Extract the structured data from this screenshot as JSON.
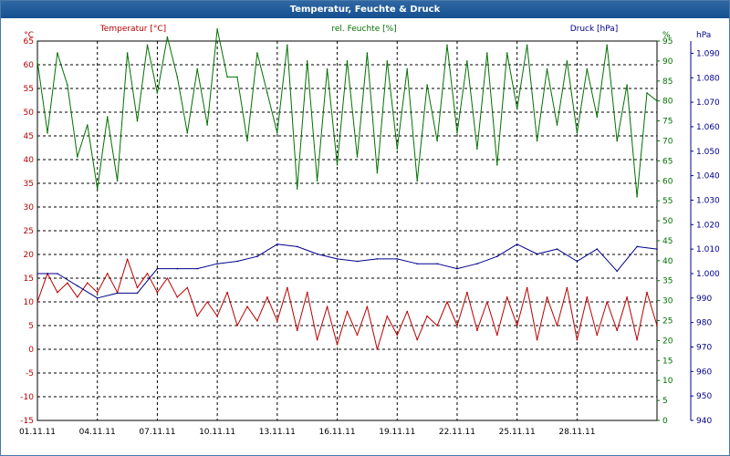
{
  "window": {
    "title": "Temperatur, Feuchte & Druck"
  },
  "colors": {
    "temperature": "#b80000",
    "humidity": "#007000",
    "pressure": "#00008c",
    "grid": "#000000"
  },
  "chart_data": {
    "type": "line",
    "title": "Temperatur, Feuchte & Druck",
    "x_axis": {
      "type": "date",
      "range": [
        "2011-11-01",
        "2011-12-02"
      ],
      "tick_labels": [
        "01.11.11",
        "04.11.11",
        "07.11.11",
        "10.11.11",
        "13.11.11",
        "16.11.11",
        "19.11.11",
        "22.11.11",
        "25.11.11",
        "28.11.11"
      ]
    },
    "y_axes": [
      {
        "id": "temp",
        "title": "Temperatur [°C]",
        "unit": "°C",
        "range": [
          -15,
          65
        ],
        "ticks": [
          -15,
          -10,
          -5,
          0,
          5,
          10,
          15,
          20,
          25,
          30,
          35,
          40,
          45,
          50,
          55,
          60,
          65
        ],
        "position": "left"
      },
      {
        "id": "hum",
        "title": "rel. Feuchte [%]",
        "unit": "%",
        "range": [
          0,
          95
        ],
        "ticks": [
          0,
          5,
          10,
          15,
          20,
          25,
          30,
          35,
          40,
          45,
          50,
          55,
          60,
          65,
          70,
          75,
          80,
          85,
          90,
          95
        ],
        "position": "right"
      },
      {
        "id": "press",
        "title": "Druck [hPa]",
        "unit": "hPa",
        "tick_labels": [
          "940",
          "950",
          "960",
          "970",
          "980",
          "990",
          "1.000",
          "1.010",
          "1.020",
          "1.030",
          "1.040",
          "1.050",
          "1.060",
          "1.070",
          "1.080",
          "1.090"
        ],
        "range": [
          940,
          1095
        ],
        "position": "far-right"
      }
    ],
    "grid": true,
    "series": [
      {
        "name": "Temperatur [°C]",
        "axis": "temp",
        "x": [
          "2011-11-01",
          "2011-11-01 12:00",
          "2011-11-02",
          "2011-11-02 12:00",
          "2011-11-03",
          "2011-11-03 12:00",
          "2011-11-04",
          "2011-11-04 12:00",
          "2011-11-05",
          "2011-11-05 12:00",
          "2011-11-06",
          "2011-11-06 12:00",
          "2011-11-07",
          "2011-11-07 12:00",
          "2011-11-08",
          "2011-11-08 12:00",
          "2011-11-09",
          "2011-11-09 12:00",
          "2011-11-10",
          "2011-11-10 12:00",
          "2011-11-11",
          "2011-11-11 12:00",
          "2011-11-12",
          "2011-11-12 12:00",
          "2011-11-13",
          "2011-11-13 12:00",
          "2011-11-14",
          "2011-11-14 12:00",
          "2011-11-15",
          "2011-11-15 12:00",
          "2011-11-16",
          "2011-11-16 12:00",
          "2011-11-17",
          "2011-11-17 12:00",
          "2011-11-18",
          "2011-11-18 12:00",
          "2011-11-19",
          "2011-11-19 12:00",
          "2011-11-20",
          "2011-11-20 12:00",
          "2011-11-21",
          "2011-11-21 12:00",
          "2011-11-22",
          "2011-11-22 12:00",
          "2011-11-23",
          "2011-11-23 12:00",
          "2011-11-24",
          "2011-11-24 12:00",
          "2011-11-25",
          "2011-11-25 12:00",
          "2011-11-26",
          "2011-11-26 12:00",
          "2011-11-27",
          "2011-11-27 12:00",
          "2011-11-28",
          "2011-11-28 12:00",
          "2011-11-29",
          "2011-11-29 12:00",
          "2011-11-30",
          "2011-11-30 12:00",
          "2011-12-01",
          "2011-12-01 12:00",
          "2011-12-02"
        ],
        "y": [
          10,
          16,
          12,
          14,
          11,
          14,
          12,
          16,
          12,
          19,
          13,
          16,
          12,
          15,
          11,
          13,
          7,
          10,
          7,
          12,
          5,
          9,
          6,
          11,
          6,
          13,
          4,
          12,
          2,
          9,
          1,
          8,
          3,
          9,
          0,
          7,
          3,
          8,
          2,
          7,
          5,
          10,
          5,
          12,
          4,
          10,
          3,
          11,
          5,
          13,
          2,
          11,
          5,
          13,
          2,
          11,
          3,
          10,
          4,
          11,
          2,
          12,
          5
        ]
      },
      {
        "name": "rel. Feuchte [%]",
        "axis": "hum",
        "x": [
          "2011-11-01",
          "2011-11-01 12:00",
          "2011-11-02",
          "2011-11-02 12:00",
          "2011-11-03",
          "2011-11-03 12:00",
          "2011-11-04",
          "2011-11-04 12:00",
          "2011-11-05",
          "2011-11-05 12:00",
          "2011-11-06",
          "2011-11-06 12:00",
          "2011-11-07",
          "2011-11-07 12:00",
          "2011-11-08",
          "2011-11-08 12:00",
          "2011-11-09",
          "2011-11-09 12:00",
          "2011-11-10",
          "2011-11-10 12:00",
          "2011-11-11",
          "2011-11-11 12:00",
          "2011-11-12",
          "2011-11-12 12:00",
          "2011-11-13",
          "2011-11-13 12:00",
          "2011-11-14",
          "2011-11-14 12:00",
          "2011-11-15",
          "2011-11-15 12:00",
          "2011-11-16",
          "2011-11-16 12:00",
          "2011-11-17",
          "2011-11-17 12:00",
          "2011-11-18",
          "2011-11-18 12:00",
          "2011-11-19",
          "2011-11-19 12:00",
          "2011-11-20",
          "2011-11-20 12:00",
          "2011-11-21",
          "2011-11-21 12:00",
          "2011-11-22",
          "2011-11-22 12:00",
          "2011-11-23",
          "2011-11-23 12:00",
          "2011-11-24",
          "2011-11-24 12:00",
          "2011-11-25",
          "2011-11-25 12:00",
          "2011-11-26",
          "2011-11-26 12:00",
          "2011-11-27",
          "2011-11-27 12:00",
          "2011-11-28",
          "2011-11-28 12:00",
          "2011-11-29",
          "2011-11-29 12:00",
          "2011-11-30",
          "2011-11-30 12:00",
          "2011-12-01",
          "2011-12-01 12:00",
          "2011-12-02"
        ],
        "y": [
          90,
          72,
          92,
          84,
          66,
          74,
          58,
          76,
          60,
          92,
          75,
          94,
          82,
          96,
          86,
          72,
          88,
          74,
          98,
          86,
          86,
          70,
          92,
          82,
          72,
          94,
          58,
          90,
          60,
          88,
          64,
          90,
          66,
          92,
          62,
          90,
          68,
          88,
          60,
          84,
          70,
          94,
          72,
          90,
          68,
          92,
          64,
          92,
          78,
          94,
          70,
          88,
          74,
          90,
          72,
          88,
          76,
          94,
          70,
          84,
          56,
          82,
          80
        ]
      },
      {
        "name": "Druck [hPa]",
        "axis": "press",
        "x": [
          "2011-11-01",
          "2011-11-02",
          "2011-11-03",
          "2011-11-04",
          "2011-11-05",
          "2011-11-06",
          "2011-11-07",
          "2011-11-08",
          "2011-11-09",
          "2011-11-10",
          "2011-11-11",
          "2011-11-12",
          "2011-11-13",
          "2011-11-14",
          "2011-11-15",
          "2011-11-16",
          "2011-11-17",
          "2011-11-18",
          "2011-11-19",
          "2011-11-20",
          "2011-11-21",
          "2011-11-22",
          "2011-11-23",
          "2011-11-24",
          "2011-11-25",
          "2011-11-26",
          "2011-11-27",
          "2011-11-28",
          "2011-11-29",
          "2011-11-30",
          "2011-12-01",
          "2011-12-02"
        ],
        "y": [
          1000,
          1000,
          995,
          990,
          992,
          992,
          1002,
          1002,
          1002,
          1004,
          1005,
          1007,
          1012,
          1011,
          1008,
          1006,
          1005,
          1006,
          1006,
          1004,
          1004,
          1002,
          1004,
          1007,
          1012,
          1008,
          1010,
          1005,
          1010,
          1001,
          1011,
          1010
        ]
      }
    ]
  }
}
